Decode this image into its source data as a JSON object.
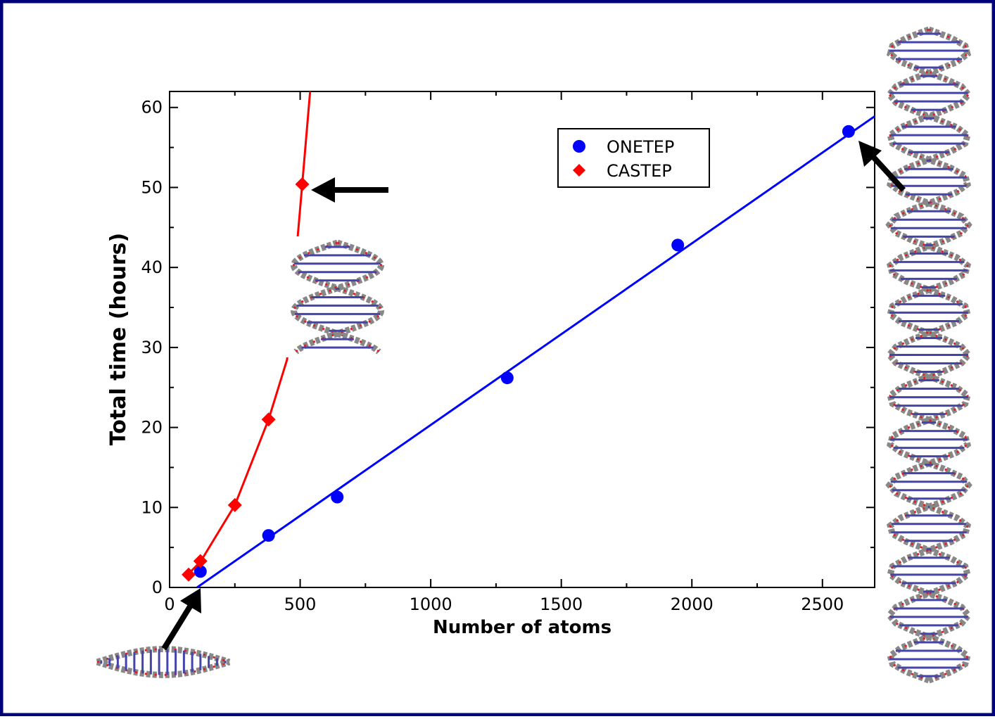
{
  "chart_data": {
    "type": "scatter",
    "xlabel": "Number of atoms",
    "ylabel": "Total time (hours)",
    "xlim": [
      0,
      2700
    ],
    "ylim": [
      0,
      62
    ],
    "xticks": [
      0,
      500,
      1000,
      1500,
      2000,
      2500
    ],
    "yticks": [
      0,
      10,
      20,
      30,
      40,
      50,
      60
    ],
    "legend": "upper right",
    "series": [
      {
        "name": "ONETEP",
        "color": "#0000ff",
        "marker": "circle",
        "x": [
          118,
          379,
          642,
          1293,
          1946,
          2600
        ],
        "values": [
          2.0,
          6.5,
          11.3,
          26.2,
          42.8,
          57.0
        ],
        "fit": {
          "x": [
            105,
            2700
          ],
          "values": [
            0,
            58.9
          ]
        }
      },
      {
        "name": "CASTEP",
        "color": "#ff0000",
        "marker": "diamond",
        "x": [
          73,
          118,
          250,
          379,
          508
        ],
        "values": [
          1.6,
          3.3,
          10.3,
          21.0,
          50.4
        ],
        "fit": {
          "x": [
            60,
            118,
            250,
            379,
            450,
            508,
            538
          ],
          "values": [
            1.3,
            3.2,
            10.3,
            21.0,
            28.5,
            50.4,
            62
          ]
        }
      }
    ]
  }
}
